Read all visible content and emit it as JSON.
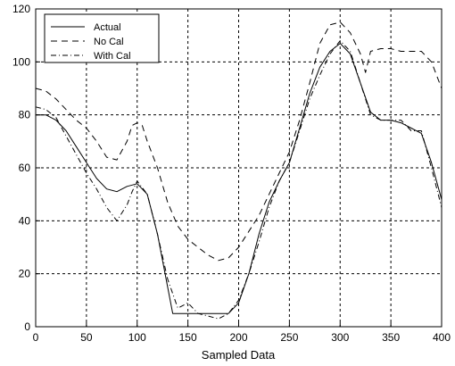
{
  "chart_data": {
    "type": "line",
    "title": "",
    "xlabel": "Sampled Data",
    "ylabel": "",
    "xlim": [
      0,
      400
    ],
    "ylim": [
      0,
      120
    ],
    "x_ticks": [
      0,
      50,
      100,
      150,
      200,
      250,
      300,
      350,
      400
    ],
    "y_ticks": [
      0,
      20,
      40,
      60,
      80,
      100,
      120
    ],
    "x_tick_labels": [
      "0",
      "50",
      "100",
      "150",
      "200",
      "250",
      "300",
      "350",
      "400"
    ],
    "y_tick_labels": [
      "0",
      "20",
      "40",
      "60",
      "80",
      "100",
      "120"
    ],
    "grid": true,
    "legend_position": "top-left",
    "series": [
      {
        "name": "Actual",
        "line_style": "solid",
        "color": "#000000",
        "x": [
          0,
          10,
          20,
          30,
          40,
          50,
          60,
          70,
          80,
          90,
          100,
          110,
          120,
          130,
          135,
          140,
          150,
          160,
          170,
          180,
          190,
          200,
          210,
          220,
          230,
          240,
          250,
          260,
          270,
          280,
          290,
          300,
          310,
          320,
          330,
          340,
          350,
          360,
          370,
          380,
          390,
          400
        ],
        "y": [
          80,
          80,
          78,
          74,
          68,
          62,
          56,
          52,
          51,
          53,
          54,
          50,
          35,
          15,
          5,
          5,
          5,
          5,
          5,
          5,
          5,
          9,
          20,
          35,
          47,
          55,
          62,
          75,
          88,
          98,
          104,
          107,
          103,
          92,
          81,
          78,
          78,
          77,
          75,
          73,
          62,
          48
        ]
      },
      {
        "name": "No Cal",
        "line_style": "dashed",
        "color": "#000000",
        "x": [
          0,
          10,
          20,
          30,
          40,
          50,
          60,
          70,
          80,
          90,
          95,
          100,
          105,
          110,
          120,
          130,
          140,
          150,
          160,
          170,
          180,
          190,
          200,
          210,
          220,
          230,
          240,
          250,
          260,
          270,
          280,
          290,
          300,
          310,
          320,
          325,
          330,
          340,
          350,
          360,
          370,
          380,
          390,
          400
        ],
        "y": [
          90,
          89,
          86,
          82,
          78,
          75,
          70,
          64,
          63,
          70,
          76,
          77,
          76,
          70,
          60,
          47,
          38,
          33,
          30,
          27,
          25,
          26,
          30,
          36,
          42,
          50,
          58,
          66,
          78,
          92,
          107,
          114,
          115,
          111,
          103,
          96,
          104,
          105,
          105,
          104,
          104,
          104,
          100,
          90
        ]
      },
      {
        "name": "With Cal",
        "line_style": "dashdot",
        "color": "#000000",
        "x": [
          0,
          10,
          20,
          30,
          40,
          50,
          60,
          70,
          80,
          90,
          95,
          100,
          110,
          120,
          130,
          140,
          150,
          160,
          170,
          180,
          190,
          200,
          210,
          220,
          230,
          240,
          250,
          260,
          270,
          280,
          290,
          300,
          310,
          320,
          330,
          340,
          350,
          360,
          370,
          380,
          390,
          400
        ],
        "y": [
          83,
          82,
          79,
          72,
          65,
          58,
          52,
          45,
          40,
          46,
          51,
          55,
          50,
          35,
          18,
          7,
          9,
          5,
          4,
          3,
          5,
          10,
          20,
          32,
          45,
          55,
          62,
          74,
          86,
          95,
          103,
          108,
          104,
          92,
          80,
          78,
          78,
          78,
          74,
          74,
          60,
          45
        ]
      }
    ]
  }
}
